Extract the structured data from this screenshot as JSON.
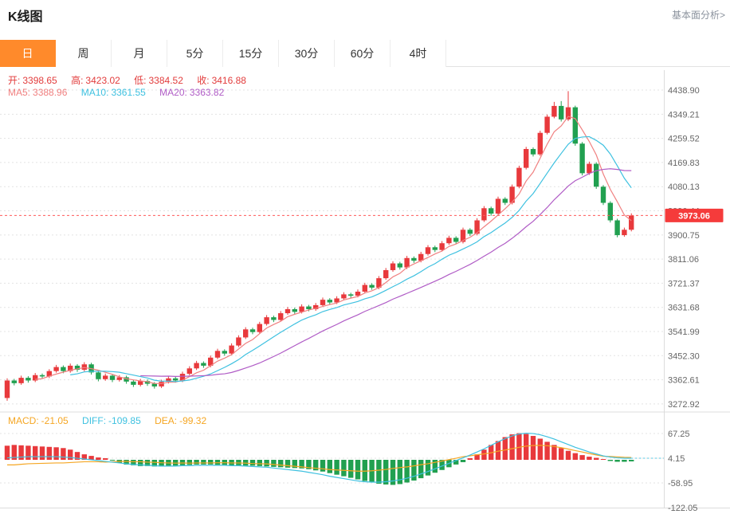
{
  "header": {
    "title": "K线图",
    "link_label": "基本面分析>"
  },
  "tabs": {
    "active_index": 0,
    "items": [
      "日",
      "周",
      "月",
      "5分",
      "15分",
      "30分",
      "60分",
      "4时"
    ]
  },
  "ohlc": {
    "open_label": "开:",
    "open_value": "3398.65",
    "high_label": "高:",
    "high_value": "3423.02",
    "low_label": "低:",
    "low_value": "3384.52",
    "close_label": "收:",
    "close_value": "3416.88"
  },
  "ma_legend": {
    "ma5_label": "MA5:",
    "ma5_value": "3388.96",
    "ma10_label": "MA10:",
    "ma10_value": "3361.55",
    "ma20_label": "MA20:",
    "ma20_value": "3363.82"
  },
  "macd_legend": {
    "macd_label": "MACD:",
    "macd_value": "-21.05",
    "diff_label": "DIFF:",
    "diff_value": "-109.85",
    "dea_label": "DEA:",
    "dea_value": "-99.32"
  },
  "colors": {
    "up": "#e8393c",
    "down": "#21a050",
    "ma5": "#f08080",
    "ma10": "#3ec1e0",
    "ma20": "#b05cc6",
    "diff_line": "#3ec1e0",
    "dea_line": "#f5a623",
    "price_line": "#ff5a5a",
    "price_tag_bg": "#f53b3b",
    "active_tab_bg": "#ff8a2b",
    "axis_text": "#666666",
    "grid": "#e3e3e3",
    "border": "#dcdcdc"
  },
  "chart_data": {
    "type": "candlestick",
    "title": "K线图 (daily K-line with MA5/MA10/MA20 overlays and MACD sub-chart)",
    "legend_position": "top-left",
    "grid": true,
    "main": {
      "y_axis_labels": [
        "4438.90",
        "4349.21",
        "4259.52",
        "4169.83",
        "4080.13",
        "3990.44",
        "3900.75",
        "3811.06",
        "3721.37",
        "3631.68",
        "3541.99",
        "3452.30",
        "3362.61",
        "3272.92"
      ],
      "current_price": 3973.06,
      "current_price_label": "3973.06",
      "price_range": [
        3243,
        4513
      ],
      "ma_periods": [
        5,
        10,
        20
      ],
      "candles_ohlc": [
        [
          3295,
          3368,
          3285,
          3360
        ],
        [
          3360,
          3366,
          3342,
          3350
        ],
        [
          3350,
          3378,
          3344,
          3370
        ],
        [
          3370,
          3376,
          3352,
          3360
        ],
        [
          3360,
          3388,
          3354,
          3380
        ],
        [
          3380,
          3386,
          3367,
          3375
        ],
        [
          3375,
          3402,
          3369,
          3395
        ],
        [
          3395,
          3418,
          3389,
          3410
        ],
        [
          3410,
          3416,
          3387,
          3395
        ],
        [
          3395,
          3423,
          3389,
          3415
        ],
        [
          3415,
          3421,
          3392,
          3400
        ],
        [
          3400,
          3428,
          3394,
          3420
        ],
        [
          3420,
          3426,
          3382,
          3390
        ],
        [
          3390,
          3396,
          3357,
          3365
        ],
        [
          3365,
          3386,
          3359,
          3378
        ],
        [
          3378,
          3384,
          3354,
          3362
        ],
        [
          3362,
          3380,
          3356,
          3372
        ],
        [
          3372,
          3378,
          3348,
          3356
        ],
        [
          3356,
          3362,
          3336,
          3344
        ],
        [
          3344,
          3366,
          3338,
          3358
        ],
        [
          3358,
          3364,
          3340,
          3348
        ],
        [
          3348,
          3354,
          3330,
          3338
        ],
        [
          3338,
          3363,
          3332,
          3355
        ],
        [
          3355,
          3376,
          3349,
          3368
        ],
        [
          3368,
          3374,
          3352,
          3360
        ],
        [
          3360,
          3393,
          3354,
          3385
        ],
        [
          3385,
          3413,
          3379,
          3405
        ],
        [
          3405,
          3433,
          3399,
          3425
        ],
        [
          3425,
          3431,
          3407,
          3415
        ],
        [
          3415,
          3453,
          3409,
          3445
        ],
        [
          3445,
          3478,
          3439,
          3470
        ],
        [
          3470,
          3476,
          3452,
          3460
        ],
        [
          3460,
          3498,
          3454,
          3490
        ],
        [
          3490,
          3528,
          3484,
          3520
        ],
        [
          3520,
          3558,
          3514,
          3550
        ],
        [
          3550,
          3556,
          3532,
          3540
        ],
        [
          3540,
          3578,
          3534,
          3570
        ],
        [
          3570,
          3603,
          3564,
          3595
        ],
        [
          3595,
          3601,
          3577,
          3585
        ],
        [
          3585,
          3618,
          3579,
          3610
        ],
        [
          3610,
          3633,
          3604,
          3625
        ],
        [
          3625,
          3631,
          3607,
          3615
        ],
        [
          3615,
          3643,
          3609,
          3635
        ],
        [
          3635,
          3641,
          3617,
          3625
        ],
        [
          3625,
          3648,
          3619,
          3640
        ],
        [
          3640,
          3668,
          3634,
          3660
        ],
        [
          3660,
          3666,
          3642,
          3650
        ],
        [
          3650,
          3673,
          3644,
          3665
        ],
        [
          3665,
          3688,
          3659,
          3680
        ],
        [
          3680,
          3686,
          3667,
          3675
        ],
        [
          3675,
          3698,
          3669,
          3690
        ],
        [
          3690,
          3723,
          3684,
          3715
        ],
        [
          3715,
          3721,
          3697,
          3705
        ],
        [
          3705,
          3748,
          3699,
          3740
        ],
        [
          3740,
          3778,
          3734,
          3770
        ],
        [
          3770,
          3803,
          3764,
          3795
        ],
        [
          3795,
          3801,
          3772,
          3780
        ],
        [
          3780,
          3823,
          3774,
          3815
        ],
        [
          3815,
          3821,
          3797,
          3805
        ],
        [
          3805,
          3838,
          3799,
          3830
        ],
        [
          3830,
          3863,
          3824,
          3855
        ],
        [
          3855,
          3861,
          3837,
          3845
        ],
        [
          3845,
          3878,
          3839,
          3870
        ],
        [
          3870,
          3898,
          3864,
          3890
        ],
        [
          3890,
          3896,
          3867,
          3875
        ],
        [
          3875,
          3928,
          3869,
          3920
        ],
        [
          3920,
          3926,
          3897,
          3905
        ],
        [
          3905,
          3963,
          3899,
          3955
        ],
        [
          3955,
          4008,
          3949,
          4000
        ],
        [
          4000,
          4006,
          3972,
          3980
        ],
        [
          3980,
          4043,
          3974,
          4035
        ],
        [
          4035,
          4041,
          4012,
          4020
        ],
        [
          4020,
          4088,
          4014,
          4080
        ],
        [
          4080,
          4158,
          4074,
          4150
        ],
        [
          4150,
          4228,
          4144,
          4220
        ],
        [
          4220,
          4226,
          4192,
          4200
        ],
        [
          4200,
          4288,
          4194,
          4280
        ],
        [
          4280,
          4348,
          4274,
          4340
        ],
        [
          4340,
          4395,
          4334,
          4380
        ],
        [
          4380,
          4398,
          4322,
          4330
        ],
        [
          4330,
          4435,
          4324,
          4375
        ],
        [
          4375,
          4381,
          4232,
          4240
        ],
        [
          4240,
          4246,
          4122,
          4130
        ],
        [
          4130,
          4173,
          4124,
          4165
        ],
        [
          4165,
          4171,
          4072,
          4080
        ],
        [
          4080,
          4086,
          4012,
          4020
        ],
        [
          4020,
          4026,
          3947,
          3955
        ],
        [
          3955,
          3961,
          3892,
          3900
        ],
        [
          3900,
          3928,
          3894,
          3920
        ],
        [
          3920,
          3981,
          3914,
          3973
        ]
      ]
    },
    "macd": {
      "y_axis_labels": [
        "67.25",
        "4.15",
        "-58.95",
        "-122.05"
      ],
      "y_axis_values": [
        67.25,
        4.15,
        -58.95,
        -122.05
      ],
      "value_range": [
        -140,
        85
      ],
      "diff": [
        5,
        6,
        7,
        8,
        8,
        8,
        8,
        8,
        7,
        6,
        4,
        2,
        0,
        -2,
        -4,
        -6,
        -8,
        -10,
        -12,
        -13,
        -14,
        -15,
        -16,
        -16,
        -16,
        -15,
        -15,
        -14,
        -14,
        -14,
        -14,
        -14,
        -15,
        -15,
        -16,
        -17,
        -18,
        -19,
        -21,
        -23,
        -25,
        -27,
        -29,
        -32,
        -35,
        -38,
        -42,
        -45,
        -48,
        -51,
        -54,
        -56,
        -57,
        -57,
        -56,
        -54,
        -51,
        -47,
        -42,
        -36,
        -30,
        -23,
        -16,
        -9,
        -2,
        5,
        12,
        20,
        28,
        37,
        46,
        54,
        61,
        66,
        68,
        67,
        64,
        59,
        53,
        46,
        39,
        32,
        26,
        20,
        15,
        10,
        7,
        5,
        4,
        4
      ],
      "hist": [
        36,
        38,
        37,
        36,
        35,
        34,
        33,
        32,
        30,
        26,
        20,
        14,
        10,
        6,
        4,
        -2,
        -8,
        -12,
        -14,
        -16,
        -16,
        -17,
        -17,
        -16,
        -15,
        -14,
        -13,
        -12,
        -12,
        -12,
        -13,
        -13,
        -14,
        -14,
        -15,
        -15,
        -16,
        -17,
        -18,
        -19,
        -20,
        -21,
        -22,
        -24,
        -27,
        -30,
        -34,
        -38,
        -42,
        -46,
        -50,
        -54,
        -58,
        -61,
        -63,
        -64,
        -62,
        -58,
        -53,
        -47,
        -40,
        -33,
        -26,
        -19,
        -12,
        -6,
        4,
        14,
        26,
        38,
        48,
        58,
        65,
        68,
        66,
        61,
        54,
        46,
        38,
        30,
        23,
        17,
        12,
        8,
        5,
        2,
        -3,
        -5,
        -5,
        -4
      ]
    }
  }
}
